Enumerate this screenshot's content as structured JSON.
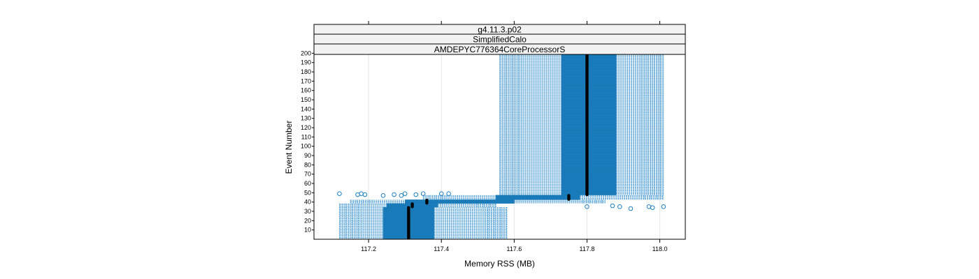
{
  "chart_data": {
    "type": "box-dot",
    "strips": [
      "g4.11.3.p02",
      "SimplifiedCalo",
      "AMDEPYC776364CoreProcessorS"
    ],
    "xlabel": "Memory RSS (MB)",
    "ylabel": "Event Number",
    "xlim": [
      117.05,
      118.07
    ],
    "ylim": [
      0,
      200
    ],
    "xticks": [
      117.2,
      117.4,
      117.6,
      117.8,
      118.0
    ],
    "xtick_labels": [
      "117.2",
      "117.4",
      "117.6",
      "117.8",
      "118.0"
    ],
    "yticks": [
      10,
      20,
      30,
      40,
      50,
      60,
      70,
      80,
      90,
      100,
      110,
      120,
      130,
      140,
      150,
      160,
      170,
      180,
      190,
      200
    ],
    "grid": true,
    "colors": {
      "box": "#1a7fc1",
      "whisker": "#66aad8",
      "median": "#000000",
      "strip_bg": "#f2f2f2"
    },
    "groups": [
      {
        "event_range": [
          1,
          34
        ],
        "whisker_low": 117.12,
        "q1": 117.24,
        "q3": 117.38,
        "whisker_high": 117.58,
        "median": 117.31
      },
      {
        "event_range": [
          35,
          38
        ],
        "whisker_low": 117.12,
        "q1": 117.25,
        "q3": 117.39,
        "whisker_high": 117.55,
        "median": 117.32
      },
      {
        "event_range": [
          39,
          42
        ],
        "whisker_low": 117.15,
        "q1": 117.3,
        "q3": 117.6,
        "whisker_high": 117.85,
        "median": 117.36
      },
      {
        "event_range": [
          43,
          47
        ],
        "whisker_low": 117.35,
        "q1": 117.55,
        "q3": 117.78,
        "whisker_high": 118.01,
        "median": 117.75
      },
      {
        "event_range": [
          48,
          200
        ],
        "whisker_low": 117.56,
        "q1": 117.73,
        "q3": 117.88,
        "whisker_high": 118.01,
        "median": 117.8
      }
    ],
    "outliers": [
      {
        "x": 117.12,
        "event": 49
      },
      {
        "x": 117.17,
        "event": 48
      },
      {
        "x": 117.18,
        "event": 49
      },
      {
        "x": 117.19,
        "event": 48
      },
      {
        "x": 117.24,
        "event": 47
      },
      {
        "x": 117.27,
        "event": 48
      },
      {
        "x": 117.29,
        "event": 47
      },
      {
        "x": 117.3,
        "event": 49
      },
      {
        "x": 117.33,
        "event": 48
      },
      {
        "x": 117.35,
        "event": 49
      },
      {
        "x": 117.4,
        "event": 49
      },
      {
        "x": 117.42,
        "event": 49
      },
      {
        "x": 117.8,
        "event": 35
      },
      {
        "x": 117.87,
        "event": 36
      },
      {
        "x": 117.89,
        "event": 35
      },
      {
        "x": 117.92,
        "event": 33
      },
      {
        "x": 117.97,
        "event": 35
      },
      {
        "x": 117.98,
        "event": 34
      },
      {
        "x": 118.01,
        "event": 35
      }
    ]
  }
}
